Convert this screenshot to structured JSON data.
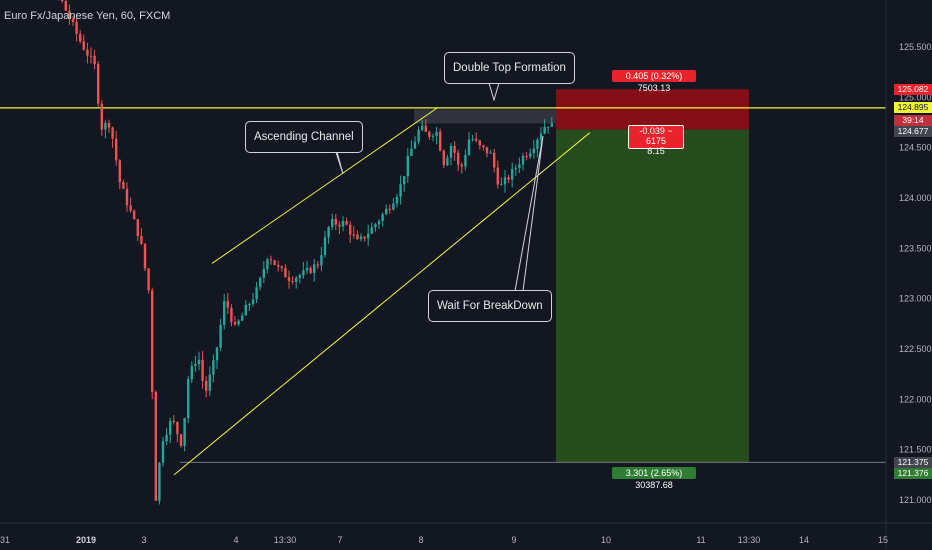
{
  "chart_data": {
    "type": "candlestick",
    "title": "Euro Fx/Japanese Yen, 60, FXCM",
    "price_axis": {
      "ticks": [
        "125.500",
        "125.000",
        "124.500",
        "124.000",
        "123.500",
        "123.000",
        "122.500",
        "122.000",
        "121.500",
        "121.000"
      ],
      "tick_values": [
        125.5,
        125.0,
        124.5,
        124.0,
        123.5,
        123.0,
        122.5,
        122.0,
        121.5,
        121.0
      ],
      "range": [
        120.75,
        126.45
      ]
    },
    "time_axis": {
      "labels": [
        "31",
        "2019",
        "3",
        "4",
        "13:30",
        "7",
        "8",
        "9",
        "10",
        "11",
        "13:30",
        "14",
        "15"
      ],
      "bold": [
        false,
        true,
        false,
        false,
        false,
        false,
        false,
        false,
        false,
        false,
        false,
        false,
        false
      ]
    },
    "price_tags": [
      {
        "text": "125.082",
        "style": "red",
        "value": 125.082
      },
      {
        "text": "124.895",
        "style": "yellow",
        "value": 124.895
      },
      {
        "text": "39:14",
        "style": "dark",
        "value": 124.77
      },
      {
        "text": "124.677",
        "style": "gray",
        "value": 124.677
      },
      {
        "text": "121.375",
        "style": "gray",
        "value": 121.375
      },
      {
        "text": "121.376",
        "style": "green",
        "value": 121.376
      }
    ],
    "annotations": {
      "double_top": "Double Top Formation",
      "channel": "Ascending Channel",
      "breakdown": "Wait For BreakDown"
    },
    "position": {
      "type": "short",
      "entry": 124.68,
      "stop": 125.08,
      "target": 121.375,
      "stop_label": "0.405 (0.32%) 7503.13",
      "mid_label_line1": "-0.039 ~ 6175",
      "mid_label_line2": "8.15",
      "target_label": "3.301 (2.65%) 30387.68"
    },
    "resistance_level": 124.895,
    "support_level": 121.375,
    "colors": {
      "up": "#26a69a",
      "down": "#ef5350",
      "level": "#f0f53a",
      "background": "#131722",
      "stop_zone": "#8b0f16",
      "target_zone": "#274e1e"
    },
    "anchors": [
      {
        "x": 0,
        "price": 126.55
      },
      {
        "x": 8,
        "price": 126.8
      },
      {
        "x": 30,
        "price": 126.45
      },
      {
        "x": 55,
        "price": 126.1
      },
      {
        "x": 78,
        "price": 125.6
      },
      {
        "x": 95,
        "price": 125.3
      },
      {
        "x": 101,
        "price": 124.7
      },
      {
        "x": 110,
        "price": 124.75
      },
      {
        "x": 120,
        "price": 124.15
      },
      {
        "x": 140,
        "price": 123.6
      },
      {
        "x": 150,
        "price": 123.0
      },
      {
        "x": 155,
        "price": 120.95
      },
      {
        "x": 162,
        "price": 121.6
      },
      {
        "x": 172,
        "price": 121.8
      },
      {
        "x": 182,
        "price": 121.55
      },
      {
        "x": 188,
        "price": 122.2
      },
      {
        "x": 198,
        "price": 122.45
      },
      {
        "x": 205,
        "price": 122.05
      },
      {
        "x": 215,
        "price": 122.4
      },
      {
        "x": 225,
        "price": 123.0
      },
      {
        "x": 235,
        "price": 122.7
      },
      {
        "x": 246,
        "price": 122.9
      },
      {
        "x": 258,
        "price": 123.1
      },
      {
        "x": 268,
        "price": 123.45
      },
      {
        "x": 278,
        "price": 123.3
      },
      {
        "x": 290,
        "price": 123.2
      },
      {
        "x": 305,
        "price": 123.25
      },
      {
        "x": 318,
        "price": 123.35
      },
      {
        "x": 330,
        "price": 123.75
      },
      {
        "x": 345,
        "price": 123.75
      },
      {
        "x": 358,
        "price": 123.55
      },
      {
        "x": 372,
        "price": 123.7
      },
      {
        "x": 388,
        "price": 123.9
      },
      {
        "x": 400,
        "price": 124.1
      },
      {
        "x": 410,
        "price": 124.45
      },
      {
        "x": 420,
        "price": 124.7
      },
      {
        "x": 428,
        "price": 124.62
      },
      {
        "x": 436,
        "price": 124.68
      },
      {
        "x": 444,
        "price": 124.35
      },
      {
        "x": 452,
        "price": 124.55
      },
      {
        "x": 460,
        "price": 124.25
      },
      {
        "x": 470,
        "price": 124.62
      },
      {
        "x": 480,
        "price": 124.5
      },
      {
        "x": 490,
        "price": 124.45
      },
      {
        "x": 500,
        "price": 124.1
      },
      {
        "x": 512,
        "price": 124.25
      },
      {
        "x": 522,
        "price": 124.4
      },
      {
        "x": 532,
        "price": 124.5
      },
      {
        "x": 540,
        "price": 124.65
      },
      {
        "x": 547,
        "price": 124.75
      },
      {
        "x": 553,
        "price": 124.7
      }
    ]
  }
}
